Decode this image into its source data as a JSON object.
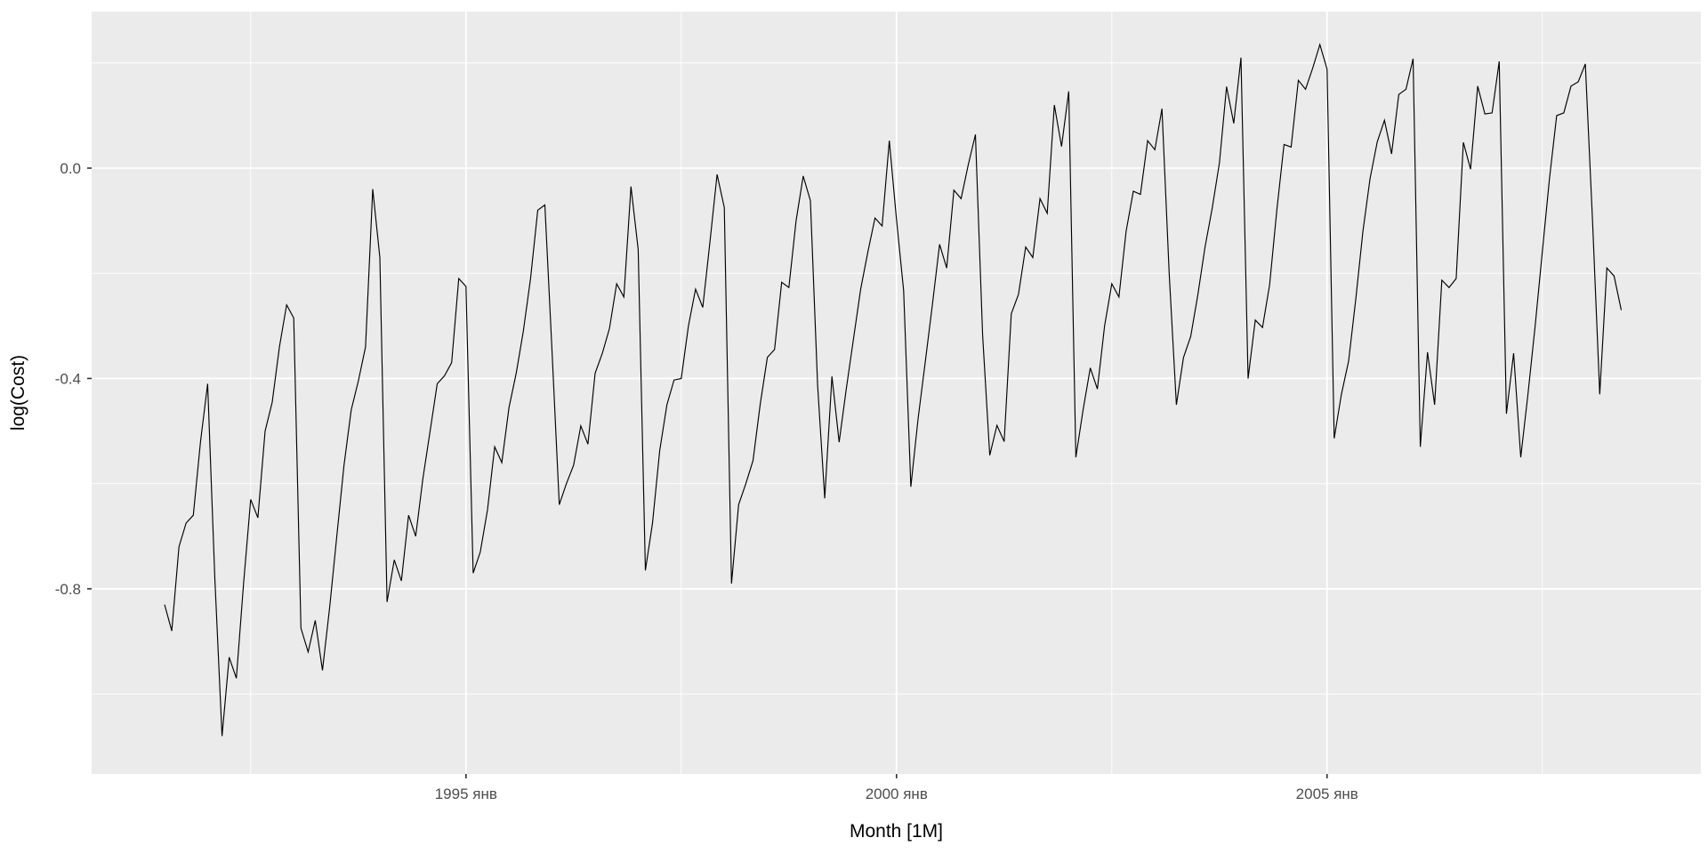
{
  "chart_data": {
    "type": "line",
    "title": "",
    "xlabel": "Month [1M]",
    "ylabel": "log(Cost)",
    "x_start": "1991-07",
    "x_freq": "monthly",
    "values": [
      -0.83,
      -0.88,
      -0.72,
      -0.675,
      -0.66,
      -0.52,
      -0.41,
      -0.78,
      -1.08,
      -0.93,
      -0.97,
      -0.79,
      -0.63,
      -0.665,
      -0.5,
      -0.445,
      -0.34,
      -0.26,
      -0.285,
      -0.875,
      -0.92,
      -0.86,
      -0.955,
      -0.835,
      -0.7,
      -0.565,
      -0.46,
      -0.405,
      -0.34,
      -0.04,
      -0.17,
      -0.825,
      -0.745,
      -0.785,
      -0.66,
      -0.7,
      -0.59,
      -0.5,
      -0.41,
      -0.395,
      -0.37,
      -0.21,
      -0.225,
      -0.77,
      -0.73,
      -0.65,
      -0.53,
      -0.56,
      -0.455,
      -0.39,
      -0.31,
      -0.21,
      -0.08,
      -0.07,
      -0.35,
      -0.64,
      -0.6,
      -0.565,
      -0.49,
      -0.525,
      -0.39,
      -0.352,
      -0.305,
      -0.22,
      -0.245,
      -0.035,
      -0.155,
      -0.765,
      -0.675,
      -0.537,
      -0.45,
      -0.403,
      -0.4,
      -0.3,
      -0.23,
      -0.265,
      -0.14,
      -0.012,
      -0.075,
      -0.79,
      -0.64,
      -0.6,
      -0.556,
      -0.45,
      -0.36,
      -0.345,
      -0.217,
      -0.227,
      -0.1,
      -0.015,
      -0.062,
      -0.413,
      -0.628,
      -0.396,
      -0.521,
      -0.42,
      -0.325,
      -0.23,
      -0.16,
      -0.095,
      -0.11,
      0.052,
      -0.098,
      -0.233,
      -0.606,
      -0.477,
      -0.37,
      -0.26,
      -0.145,
      -0.19,
      -0.042,
      -0.058,
      0.006,
      0.064,
      -0.318,
      -0.546,
      -0.489,
      -0.52,
      -0.277,
      -0.24,
      -0.15,
      -0.17,
      -0.058,
      -0.086,
      0.12,
      0.041,
      0.146,
      -0.55,
      -0.46,
      -0.38,
      -0.42,
      -0.3,
      -0.22,
      -0.245,
      -0.12,
      -0.044,
      -0.05,
      0.052,
      0.035,
      0.113,
      -0.2,
      -0.45,
      -0.36,
      -0.32,
      -0.24,
      -0.15,
      -0.076,
      0.01,
      0.155,
      0.085,
      0.21,
      -0.4,
      -0.289,
      -0.303,
      -0.222,
      -0.08,
      0.045,
      0.04,
      0.167,
      0.15,
      0.19,
      0.235,
      0.188,
      -0.514,
      -0.43,
      -0.367,
      -0.25,
      -0.12,
      -0.02,
      0.05,
      0.091,
      0.027,
      0.14,
      0.15,
      0.208,
      -0.53,
      -0.35,
      -0.45,
      -0.213,
      -0.227,
      -0.21,
      0.049,
      -0.002,
      0.156,
      0.103,
      0.105,
      0.203,
      -0.467,
      -0.352,
      -0.55,
      -0.43,
      -0.3,
      -0.16,
      -0.02,
      0.1,
      0.105,
      0.156,
      0.164,
      0.198,
      -0.1,
      -0.43,
      -0.19,
      -0.205,
      -0.27
    ],
    "x_ticks_major": [
      {
        "month_index": 42,
        "label": "1995 янв"
      },
      {
        "month_index": 102,
        "label": "2000 янв"
      },
      {
        "month_index": 162,
        "label": "2005 янв"
      }
    ],
    "x_ticks_minor_month_index": [
      12,
      72,
      132,
      192
    ],
    "y_ticks_major": [
      {
        "value": 0.0,
        "label": "0.0"
      },
      {
        "value": -0.4,
        "label": "-0.4"
      },
      {
        "value": -0.8,
        "label": "-0.8"
      }
    ],
    "y_ticks_minor": [
      0.2,
      -0.2,
      -0.6,
      -1.0
    ],
    "xlim_month_index": [
      -10.17,
      214.1
    ],
    "ylim": [
      -1.152,
      0.2977
    ],
    "grid": true,
    "legend": "none",
    "colors": {
      "background": "#FFFFFF",
      "panel": "#EBEBEB",
      "grid_major": "#FFFFFF",
      "grid_minor": "#FFFFFF",
      "line": "#000000",
      "tick_mark": "#333333",
      "tick_label": "#4D4D4D",
      "axis_title": "#000000"
    }
  }
}
